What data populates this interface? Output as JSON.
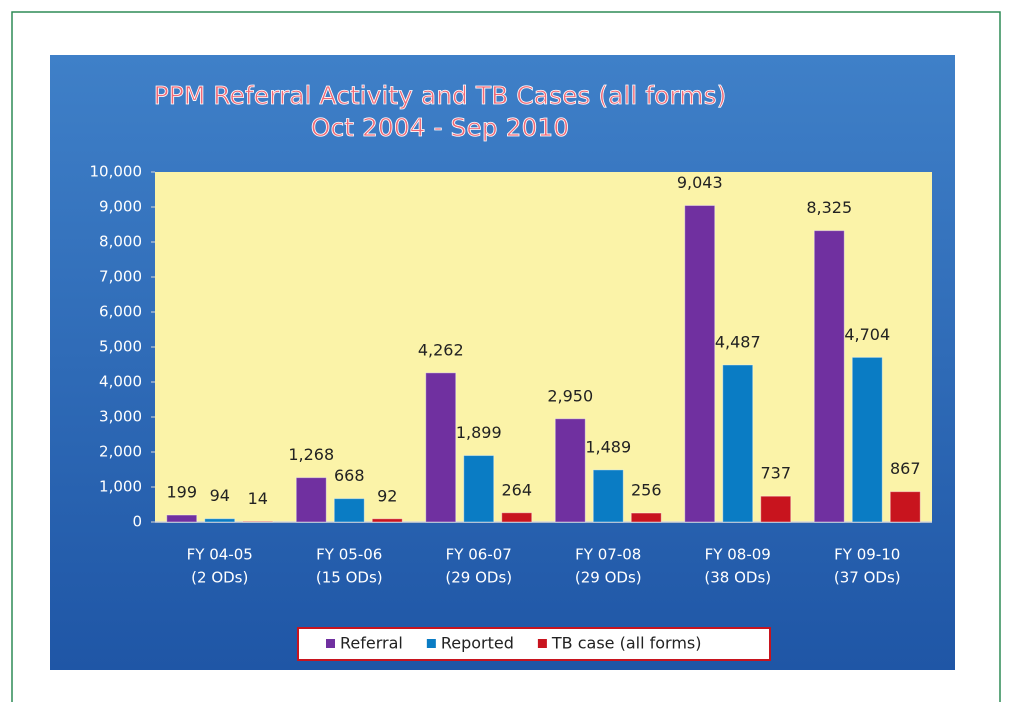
{
  "chart_data": {
    "type": "bar",
    "title": "PPM Referral Activity and TB Cases (all forms)",
    "subtitle": "Oct 2004 - Sep 2010",
    "categories": [
      [
        "FY 04-05",
        "(2 ODs)"
      ],
      [
        "FY 05-06",
        "(15 ODs)"
      ],
      [
        "FY 06-07",
        "(29 ODs)"
      ],
      [
        "FY 07-08",
        "(29 ODs)"
      ],
      [
        "FY 08-09",
        "(38 ODs)"
      ],
      [
        "FY 09-10",
        "(37 ODs)"
      ]
    ],
    "series": [
      {
        "name": "Referral",
        "color": "#7030a0",
        "values": [
          199,
          1268,
          4262,
          2950,
          9043,
          8325
        ],
        "value_labels": [
          "199",
          "1,268",
          "4,262",
          "2,950",
          "9,043",
          "8,325"
        ]
      },
      {
        "name": "Reported",
        "color": "#0a7cc4",
        "values": [
          94,
          668,
          1899,
          1489,
          4487,
          4704
        ],
        "value_labels": [
          "94",
          "668",
          "1,899",
          "1,489",
          "4,487",
          "4,704"
        ]
      },
      {
        "name": "TB case (all forms)",
        "color": "#c8141e",
        "values": [
          14,
          92,
          264,
          256,
          737,
          867
        ],
        "value_labels": [
          "14",
          "92",
          "264",
          "256",
          "737",
          "867"
        ]
      }
    ],
    "ylim": [
      0,
      10000
    ],
    "yticks": [
      0,
      {
        "value": 1000,
        "label": "1,000"
      },
      {
        "value": 2000,
        "label": "2,000"
      },
      {
        "value": 3000,
        "label": "3,000"
      },
      {
        "value": 4000,
        "label": "4,000"
      },
      {
        "value": 5000,
        "label": "5,000"
      },
      {
        "value": 6000,
        "label": "6,000"
      },
      {
        "value": 7000,
        "label": "7,000"
      },
      {
        "value": 8000,
        "label": "8,000"
      },
      {
        "value": 9000,
        "label": "9,000"
      },
      {
        "value": 10000,
        "label": "10,000"
      }
    ],
    "legend": "bottom"
  }
}
